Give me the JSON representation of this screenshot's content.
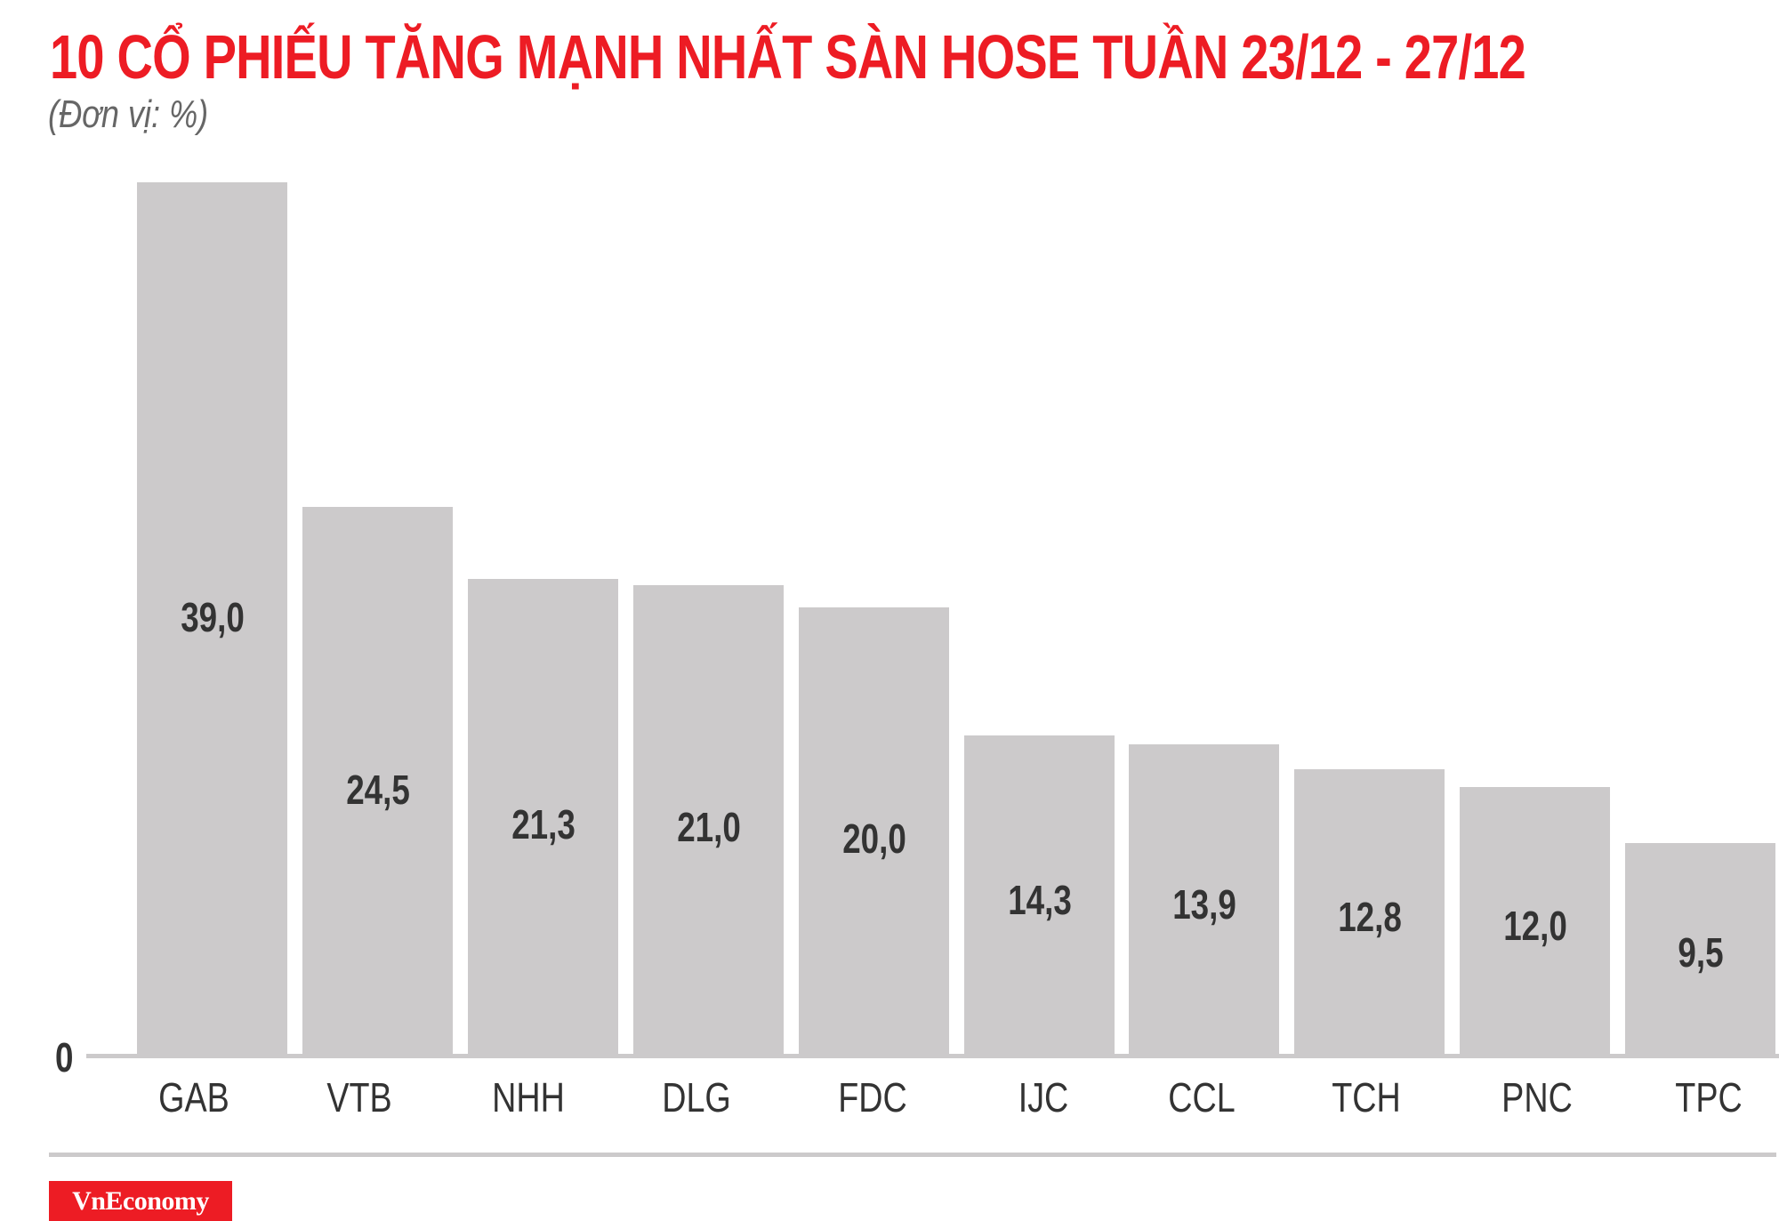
{
  "header": {
    "title": "10 CỔ PHIẾU TĂNG MẠNH NHẤT SÀN HOSE TUẦN 23/12 - 27/12",
    "subtitle": "(Đơn vị: %)"
  },
  "axis": {
    "zero_label": "0"
  },
  "footer": {
    "logo_text": "VnEconomy"
  },
  "colors": {
    "title": "#ED1C24",
    "bar": "#CCCACB",
    "text": "#333333",
    "subtitle": "#666666",
    "logo_bg": "#ED1C24"
  },
  "bars": [
    {
      "ticker": "GAB",
      "value": 39.0,
      "label": "39,0"
    },
    {
      "ticker": "VTB",
      "value": 24.5,
      "label": "24,5"
    },
    {
      "ticker": "NHH",
      "value": 21.3,
      "label": "21,3"
    },
    {
      "ticker": "DLG",
      "value": 21.0,
      "label": "21,0"
    },
    {
      "ticker": "FDC",
      "value": 20.0,
      "label": "20,0"
    },
    {
      "ticker": "IJC",
      "value": 14.3,
      "label": "14,3"
    },
    {
      "ticker": "CCL",
      "value": 13.9,
      "label": "13,9"
    },
    {
      "ticker": "TCH",
      "value": 12.8,
      "label": "12,8"
    },
    {
      "ticker": "PNC",
      "value": 12.0,
      "label": "12,0"
    },
    {
      "ticker": "TPC",
      "value": 9.5,
      "label": "9,5"
    }
  ],
  "chart_data": {
    "type": "bar",
    "title": "10 CỔ PHIẾU TĂNG MẠNH NHẤT SÀN HOSE TUẦN 23/12 - 27/12",
    "subtitle": "(Đơn vị: %)",
    "categories": [
      "GAB",
      "VTB",
      "NHH",
      "DLG",
      "FDC",
      "IJC",
      "CCL",
      "TCH",
      "PNC",
      "TPC"
    ],
    "values": [
      39.0,
      24.5,
      21.3,
      21.0,
      20.0,
      14.3,
      13.9,
      12.8,
      12.0,
      9.5
    ],
    "data_labels": [
      "39,0",
      "24,5",
      "21,3",
      "21,0",
      "20,0",
      "14,3",
      "13,9",
      "12,8",
      "12,0",
      "9,5"
    ],
    "xlabel": "",
    "ylabel": "%",
    "y_tick_labels": [
      "0"
    ],
    "ylim": [
      0,
      39
    ],
    "grid": false,
    "legend": null
  }
}
